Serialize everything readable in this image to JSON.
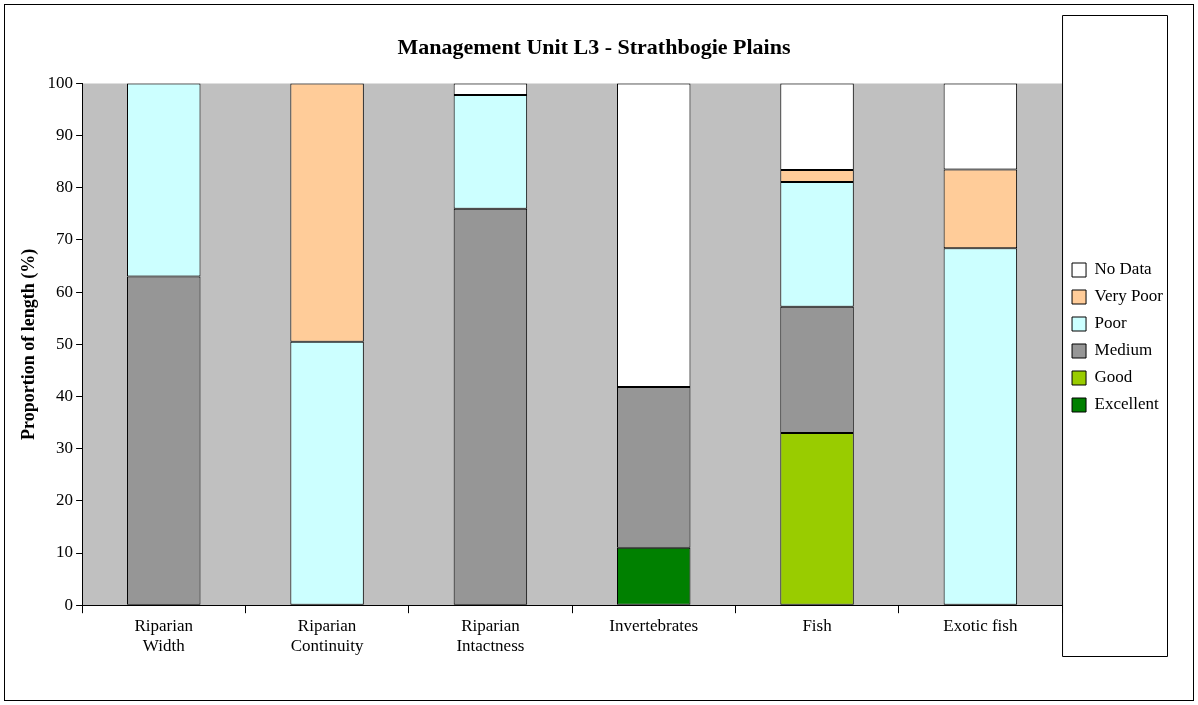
{
  "chart_data": {
    "type": "bar",
    "title": "Management Unit L3 - Strathbogie Plains",
    "ylabel": "Proportion of length (%)",
    "categories": [
      "Riparian Width",
      "Riparian Continuity",
      "Riparian Intactness",
      "Invertebrates",
      "Fish",
      "Exotic fish"
    ],
    "stacked": true,
    "ylim": [
      0,
      100
    ],
    "yticks": [
      0,
      10,
      20,
      30,
      40,
      50,
      60,
      70,
      80,
      90,
      100
    ],
    "grid": false,
    "legend": "right",
    "series": [
      {
        "name": "Excellent",
        "color": "#008000",
        "values": [
          0,
          0,
          0,
          11,
          0,
          0
        ]
      },
      {
        "name": "Good",
        "color": "#99cc00",
        "values": [
          0,
          0,
          0,
          0,
          33,
          0
        ]
      },
      {
        "name": "Medium",
        "color": "#969696",
        "values": [
          63,
          0,
          76,
          30.8,
          24.2,
          0
        ]
      },
      {
        "name": "Poor",
        "color": "#ccffff",
        "values": [
          37,
          50.5,
          21.8,
          0,
          23.9,
          68.4
        ]
      },
      {
        "name": "Very Poor",
        "color": "#ffcc99",
        "values": [
          0,
          49.5,
          0,
          0,
          2.3,
          15.1
        ]
      },
      {
        "name": "No Data",
        "color": "#ffffff",
        "values": [
          0,
          0,
          2.2,
          58.2,
          16.6,
          16.5
        ]
      }
    ]
  }
}
